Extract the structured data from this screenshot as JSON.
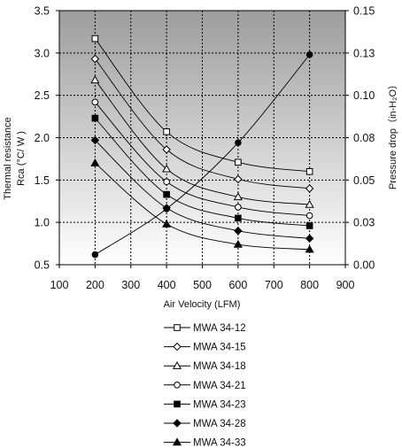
{
  "chart_data": {
    "type": "line",
    "xlabel": "Air Velocity (LFM)",
    "ylabel_line1": "Thermal resistance",
    "ylabel_line2": "Rca (°C/ W )",
    "y2label": "Pressure drop（in-H₂O）",
    "xlim": [
      100,
      900
    ],
    "ylim": [
      0.5,
      3.5
    ],
    "y2lim": [
      0.0,
      0.15
    ],
    "x_ticks": [
      "100",
      "200",
      "300",
      "400",
      "500",
      "600",
      "700",
      "800",
      "900"
    ],
    "y_ticks": [
      "0.5",
      "1.0",
      "1.5",
      "2.0",
      "2.5",
      "3.0",
      "3.5"
    ],
    "y2_ticks": [
      "0.00",
      "0.03",
      "0.05",
      "0.08",
      "0.10",
      "0.13",
      "0.15"
    ],
    "grid": true,
    "background": "gradient grey",
    "series": [
      {
        "name": "MWA 34-12",
        "marker": "square-open",
        "axis": "left",
        "x": [
          200,
          400,
          600,
          800
        ],
        "values": [
          3.17,
          2.07,
          1.71,
          1.6
        ]
      },
      {
        "name": "MWA 34-15",
        "marker": "diamond-open",
        "axis": "left",
        "x": [
          200,
          400,
          600,
          800
        ],
        "values": [
          2.93,
          1.86,
          1.51,
          1.4
        ]
      },
      {
        "name": "MWA 34-18",
        "marker": "triangle-open",
        "axis": "left",
        "x": [
          200,
          400,
          600,
          800
        ],
        "values": [
          2.68,
          1.63,
          1.3,
          1.21
        ]
      },
      {
        "name": "MWA 34-21",
        "marker": "circle-open",
        "axis": "left",
        "x": [
          200,
          400,
          600,
          800
        ],
        "values": [
          2.42,
          1.48,
          1.18,
          1.08
        ]
      },
      {
        "name": "MWA 34-23",
        "marker": "square-filled",
        "axis": "left",
        "x": [
          200,
          400,
          600,
          800
        ],
        "values": [
          2.23,
          1.33,
          1.05,
          0.96
        ]
      },
      {
        "name": "MWA 34-28",
        "marker": "diamond-filled",
        "axis": "left",
        "x": [
          200,
          400,
          600,
          800
        ],
        "values": [
          1.97,
          1.17,
          0.9,
          0.81
        ]
      },
      {
        "name": "MWA 34-33",
        "marker": "triangle-filled",
        "axis": "left",
        "x": [
          200,
          400,
          600,
          800
        ],
        "values": [
          1.7,
          0.98,
          0.74,
          0.68
        ]
      }
    ],
    "pressure_series": {
      "marker": "circle-filled",
      "axis": "right",
      "x": [
        200,
        400,
        600,
        800
      ],
      "values": [
        0.006,
        0.033,
        0.072,
        0.124
      ]
    }
  }
}
